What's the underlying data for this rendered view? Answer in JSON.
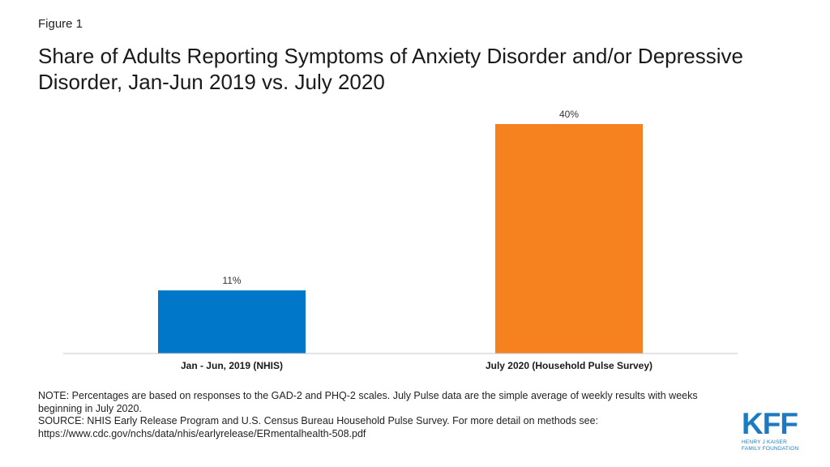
{
  "figure_label": "Figure 1",
  "title": "Share of Adults Reporting Symptoms of Anxiety Disorder and/or Depressive Disorder, Jan-Jun 2019 vs. July 2020",
  "chart_data": {
    "type": "bar",
    "categories": [
      "Jan - Jun, 2019 (NHIS)",
      "July 2020 (Household Pulse Survey)"
    ],
    "values": [
      11,
      40
    ],
    "value_labels": [
      "11%",
      "40%"
    ],
    "colors": [
      "#0077c8",
      "#f5821f"
    ],
    "ylim": [
      0,
      40
    ],
    "grid": false,
    "legend": "none",
    "xlabel": "",
    "ylabel": ""
  },
  "note": "NOTE: Percentages are based on responses to the GAD-2 and PHQ-2 scales. July Pulse data are the simple average of weekly results with weeks beginning in July 2020.",
  "source": "SOURCE: NHIS Early Release Program and U.S. Census Bureau Household Pulse Survey. For more detail on methods see: https://www.cdc.gov/nchs/data/nhis/earlyrelease/ERmentalhealth-508.pdf",
  "logo": {
    "main": "KFF",
    "line1": "Henry J Kaiser",
    "line2": "Family Foundation"
  }
}
